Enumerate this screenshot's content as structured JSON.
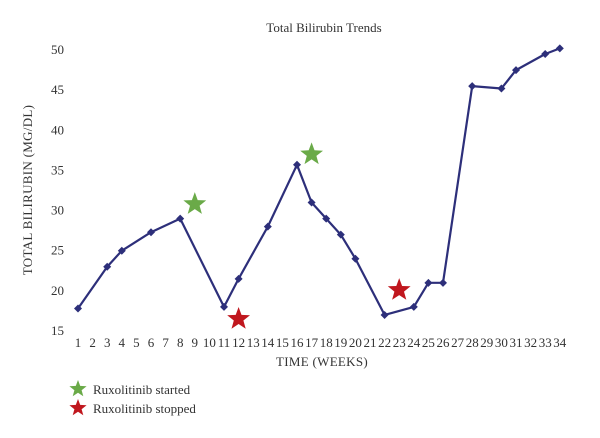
{
  "chart_data": {
    "type": "line",
    "title": "Total Bilirubin Trends",
    "xlabel": "TIME (WEEKS)",
    "ylabel": "TOTAL BILIRUBIN (MG/DL)",
    "ylim": [
      15,
      50
    ],
    "yticks": [
      15,
      20,
      25,
      30,
      35,
      40,
      45,
      50
    ],
    "x_ticks": [
      "1",
      "2",
      "3",
      "4",
      "5",
      "6",
      "7",
      "8",
      "9",
      "10",
      "11",
      "12",
      "13",
      "14",
      "15",
      "16",
      "17",
      "18",
      "19",
      "20",
      "21",
      "22",
      "23",
      "24",
      "25",
      "26",
      "27",
      "28",
      "29",
      "30",
      "31",
      "32",
      "33",
      "34"
    ],
    "grid": false,
    "series": [
      {
        "color": "#2d2f7a",
        "marker": "diamond",
        "points": [
          {
            "x": 1,
            "y": 17.8
          },
          {
            "x": 3,
            "y": 23.0
          },
          {
            "x": 4,
            "y": 25.0
          },
          {
            "x": 6,
            "y": 27.3
          },
          {
            "x": 8,
            "y": 29.0
          },
          {
            "x": 11,
            "y": 18.0
          },
          {
            "x": 12,
            "y": 21.5
          },
          {
            "x": 14,
            "y": 28.0
          },
          {
            "x": 16,
            "y": 35.7
          },
          {
            "x": 17,
            "y": 31.0
          },
          {
            "x": 18,
            "y": 29.0
          },
          {
            "x": 19,
            "y": 27.0
          },
          {
            "x": 20,
            "y": 24.0
          },
          {
            "x": 22,
            "y": 17.0
          },
          {
            "x": 24,
            "y": 18.0
          },
          {
            "x": 25,
            "y": 21.0
          },
          {
            "x": 26,
            "y": 21.0
          },
          {
            "x": 28,
            "y": 45.5
          },
          {
            "x": 30,
            "y": 45.2
          },
          {
            "x": 31,
            "y": 47.5
          },
          {
            "x": 33,
            "y": 49.5
          },
          {
            "x": 34,
            "y": 50.2
          }
        ]
      }
    ],
    "annotations": [
      {
        "kind": "started",
        "x": 9,
        "y": 30.8,
        "color": "#6aaa48"
      },
      {
        "kind": "started",
        "x": 17,
        "y": 37.0,
        "color": "#6aaa48"
      },
      {
        "kind": "stopped",
        "x": 12,
        "y": 16.5,
        "color": "#c0171e"
      },
      {
        "kind": "stopped",
        "x": 23,
        "y": 20.1,
        "color": "#c0171e"
      }
    ],
    "legend": {
      "placement": "bottom-left",
      "items": [
        {
          "label": "Ruxolitinib started",
          "color": "#6aaa48",
          "marker": "star"
        },
        {
          "label": "Ruxolitinib stopped",
          "color": "#c0171e",
          "marker": "star"
        }
      ]
    }
  }
}
